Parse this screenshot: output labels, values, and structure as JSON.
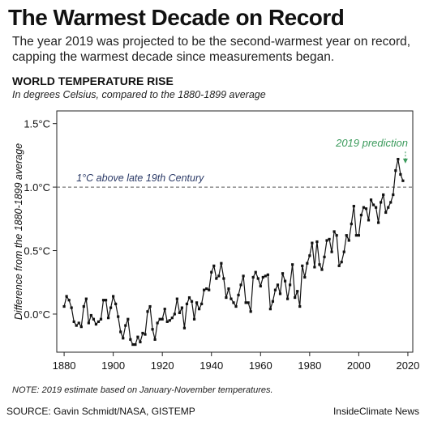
{
  "header": {
    "title": "The Warmest Decade on Record",
    "subtitle": "The year 2019 was projected to be the second-warmest year on record, capping the warmest decade since measurements began.",
    "section": "WORLD TEMPERATURE RISE",
    "section_sub": "In degrees Celsius, compared to the 1880-1899 average"
  },
  "footer": {
    "note": "NOTE: 2019 estimate based on January-November temperatures.",
    "source": "SOURCE: Gavin Schmidt/NASA, GISTEMP",
    "credit": "InsideClimate News"
  },
  "colors": {
    "line": "#111111",
    "reference": "#555555",
    "reference_label": "#2b3a67",
    "prediction": "#3a9a5b",
    "frame": "#222222"
  },
  "chart_data": {
    "type": "line",
    "title": "WORLD TEMPERATURE RISE",
    "subtitle": "In degrees Celsius, compared to the 1880-1899 average",
    "xlabel": "",
    "ylabel": "Difference from the 1880-1899 average",
    "xlim": [
      1877,
      2022
    ],
    "ylim": [
      -0.3,
      1.6
    ],
    "xticks": [
      1880,
      1900,
      1920,
      1940,
      1960,
      1980,
      2000,
      2020
    ],
    "xtick_labels": [
      "1880",
      "1900",
      "1920",
      "1940",
      "1960",
      "1980",
      "2000",
      "2020"
    ],
    "yticks": [
      0.0,
      0.5,
      1.0,
      1.5
    ],
    "ytick_labels": [
      "0.0°C",
      "0.5°C",
      "1.0°C",
      "1.5°C"
    ],
    "reference_line": {
      "y": 1.0,
      "label": "1°C above late 19th Century"
    },
    "annotation": {
      "label": "2019 prediction",
      "x": 2019,
      "y": 1.18
    },
    "grid": false,
    "series": [
      {
        "x": [
          1880,
          1881,
          1882,
          1883,
          1884,
          1885,
          1886,
          1887,
          1888,
          1889,
          1890,
          1891,
          1892,
          1893,
          1894,
          1895,
          1896,
          1897,
          1898,
          1899,
          1900,
          1901,
          1902,
          1903,
          1904,
          1905,
          1906,
          1907,
          1908,
          1909,
          1910,
          1911,
          1912,
          1913,
          1914,
          1915,
          1916,
          1917,
          1918,
          1919,
          1920,
          1921,
          1922,
          1923,
          1924,
          1925,
          1926,
          1927,
          1928,
          1929,
          1930,
          1931,
          1932,
          1933,
          1934,
          1935,
          1936,
          1937,
          1938,
          1939,
          1940,
          1941,
          1942,
          1943,
          1944,
          1945,
          1946,
          1947,
          1948,
          1949,
          1950,
          1951,
          1952,
          1953,
          1954,
          1955,
          1956,
          1957,
          1958,
          1959,
          1960,
          1961,
          1962,
          1963,
          1964,
          1965,
          1966,
          1967,
          1968,
          1969,
          1970,
          1971,
          1972,
          1973,
          1974,
          1975,
          1976,
          1977,
          1978,
          1979,
          1980,
          1981,
          1982,
          1983,
          1984,
          1985,
          1986,
          1987,
          1988,
          1989,
          1990,
          1991,
          1992,
          1993,
          1994,
          1995,
          1996,
          1997,
          1998,
          1999,
          2000,
          2001,
          2002,
          2003,
          2004,
          2005,
          2006,
          2007,
          2008,
          2009,
          2010,
          2011,
          2012,
          2013,
          2014,
          2015,
          2016,
          2017,
          2018
        ],
        "y": [
          0.06,
          0.14,
          0.11,
          0.05,
          -0.06,
          -0.09,
          -0.07,
          -0.1,
          0.06,
          0.12,
          -0.07,
          -0.01,
          -0.04,
          -0.08,
          -0.06,
          -0.04,
          0.11,
          0.11,
          -0.03,
          0.05,
          0.14,
          0.08,
          -0.02,
          -0.14,
          -0.19,
          -0.09,
          -0.04,
          -0.2,
          -0.24,
          -0.24,
          -0.18,
          -0.22,
          -0.15,
          -0.16,
          0.02,
          0.06,
          -0.12,
          -0.2,
          -0.07,
          -0.04,
          -0.04,
          0.04,
          -0.06,
          -0.05,
          -0.03,
          0.0,
          0.12,
          0.01,
          0.05,
          -0.11,
          0.08,
          0.13,
          0.1,
          -0.04,
          0.09,
          0.04,
          0.08,
          0.19,
          0.2,
          0.19,
          0.33,
          0.38,
          0.28,
          0.3,
          0.4,
          0.28,
          0.13,
          0.2,
          0.12,
          0.09,
          0.06,
          0.15,
          0.23,
          0.3,
          0.09,
          0.09,
          0.02,
          0.29,
          0.33,
          0.28,
          0.22,
          0.29,
          0.3,
          0.31,
          0.04,
          0.1,
          0.19,
          0.23,
          0.16,
          0.32,
          0.26,
          0.12,
          0.23,
          0.39,
          0.13,
          0.18,
          0.06,
          0.38,
          0.29,
          0.4,
          0.46,
          0.56,
          0.37,
          0.57,
          0.39,
          0.35,
          0.45,
          0.58,
          0.59,
          0.49,
          0.65,
          0.62,
          0.38,
          0.41,
          0.49,
          0.62,
          0.58,
          0.71,
          0.85,
          0.62,
          0.62,
          0.78,
          0.84,
          0.83,
          0.74,
          0.9,
          0.86,
          0.84,
          0.72,
          0.88,
          0.94,
          0.8,
          0.84,
          0.88,
          0.94,
          1.13,
          1.22,
          1.1,
          1.05
        ]
      }
    ]
  }
}
